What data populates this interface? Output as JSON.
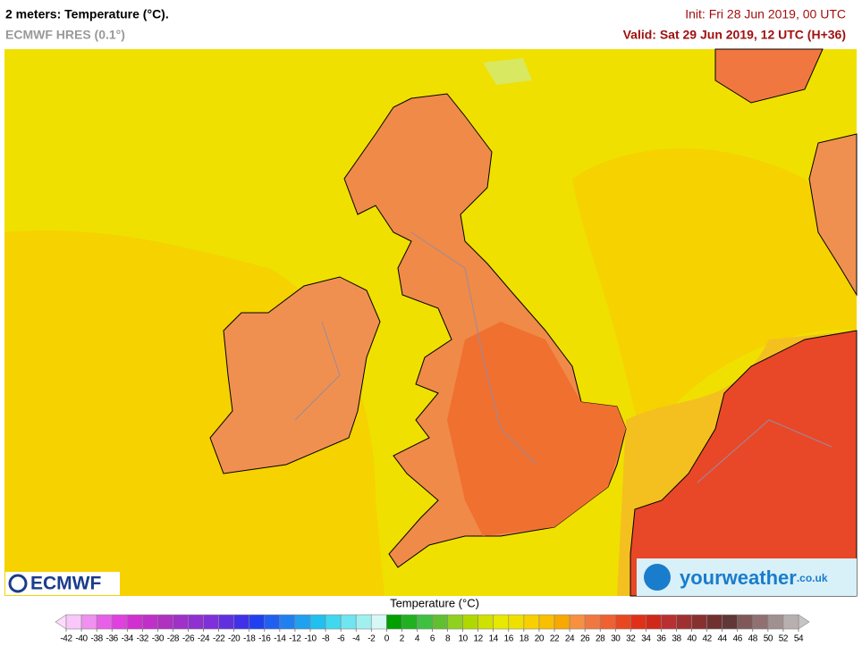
{
  "header": {
    "title": "2 meters: Temperature (°C).",
    "model": "ECMWF HRES (0.1°)",
    "init": "Init: Fri 28 Jun 2019, 00 UTC",
    "valid": "Valid: Sat 29 Jun 2019, 12 UTC (H+36)"
  },
  "logos": {
    "ecmwf": "ECMWF",
    "brand": "yourweather",
    "domain": ".co.uk"
  },
  "colorbar": {
    "title": "Temperature (°C)",
    "ticks": [
      -42,
      -40,
      -38,
      -36,
      -34,
      -32,
      -30,
      -28,
      -26,
      -24,
      -22,
      -20,
      -18,
      -16,
      -14,
      -12,
      -10,
      -8,
      -6,
      -4,
      -2,
      0,
      2,
      4,
      6,
      8,
      10,
      12,
      14,
      16,
      18,
      20,
      22,
      24,
      26,
      28,
      30,
      32,
      34,
      36,
      38,
      40,
      42,
      44,
      46,
      48,
      50,
      52,
      54
    ],
    "under_color": "#fcdcfc",
    "over_color": "#c8c4c4",
    "colors": [
      "#f8c8f8",
      "#f090f0",
      "#e860e8",
      "#e040e0",
      "#d030d0",
      "#c030c8",
      "#b030c0",
      "#a030c8",
      "#9030d0",
      "#8030d8",
      "#6030e0",
      "#4030e8",
      "#2040f0",
      "#2060f0",
      "#2080f0",
      "#20a0f0",
      "#20c0f0",
      "#40d8f0",
      "#70e4f0",
      "#a0f0f0",
      "#d8f8f8",
      "#00a000",
      "#20b020",
      "#40c040",
      "#60c030",
      "#90d020",
      "#b0d800",
      "#d0e000",
      "#e8e800",
      "#f0e000",
      "#f8d000",
      "#f8c000",
      "#f8a800",
      "#f89040",
      "#f07840",
      "#f06030",
      "#e84820",
      "#e03018",
      "#d02818",
      "#b83030",
      "#a03030",
      "#883030",
      "#703030",
      "#603838",
      "#805858",
      "#907070",
      "#a09090",
      "#b8b0b0"
    ]
  }
}
